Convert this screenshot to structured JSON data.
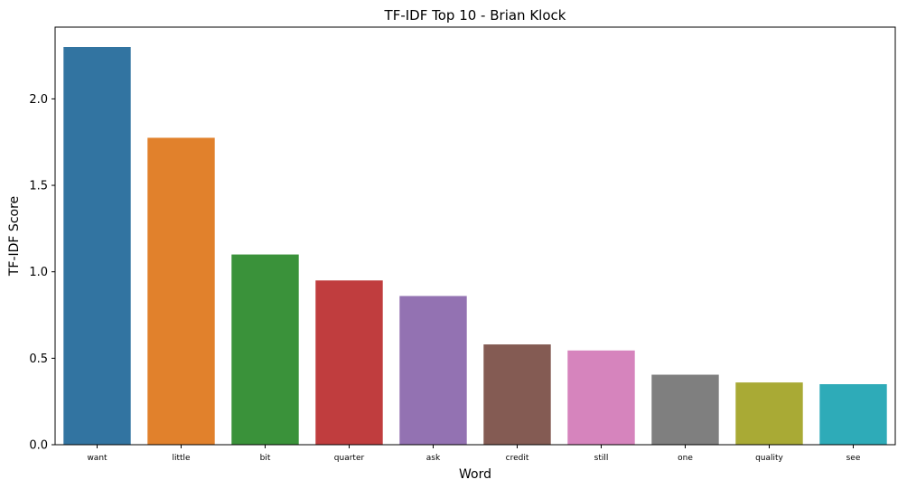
{
  "chart_data": {
    "type": "bar",
    "title": "TF-IDF Top 10 - Brian Klock",
    "xlabel": "Word",
    "ylabel": "TF-IDF Score",
    "categories": [
      "want",
      "little",
      "bit",
      "quarter",
      "ask",
      "credit",
      "still",
      "one",
      "quality",
      "see"
    ],
    "values": [
      2.3,
      1.775,
      1.1,
      0.95,
      0.86,
      0.58,
      0.545,
      0.405,
      0.36,
      0.35
    ],
    "colors": [
      "#3274a1",
      "#e1812c",
      "#3a923a",
      "#c03d3e",
      "#9372b2",
      "#845b53",
      "#d684bd",
      "#7f7f7f",
      "#a9aa35",
      "#2eabb8"
    ],
    "ylim": [
      0,
      2.415
    ],
    "yticks": [
      "0.0",
      "0.5",
      "1.0",
      "1.5",
      "2.0"
    ],
    "grid": false,
    "legend": "none"
  }
}
